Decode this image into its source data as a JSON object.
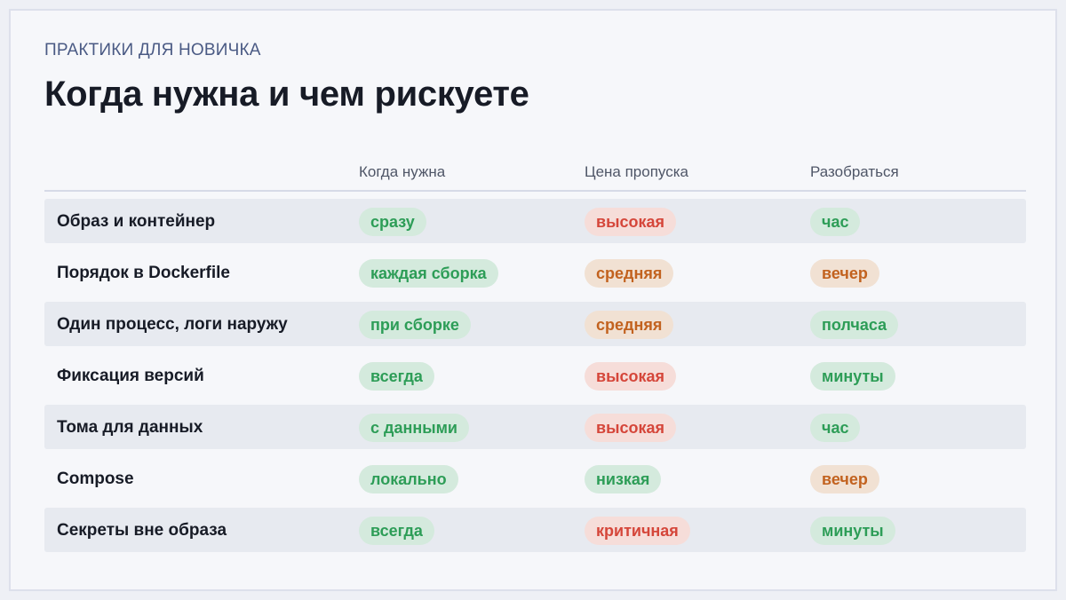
{
  "eyebrow": "ПРАКТИКИ ДЛЯ НОВИЧКА",
  "title": "Когда нужна и чем рискуете",
  "columns": [
    "Когда нужна",
    "Цена пропуска",
    "Разобраться"
  ],
  "colors": {
    "green": "#2d9d57",
    "red": "#d5463a",
    "orange": "#c2621f"
  },
  "rows": [
    {
      "label": "Образ и контейнер",
      "when": "сразу",
      "when_color": "green",
      "cost": "высокая",
      "cost_color": "red",
      "learn": "час",
      "learn_color": "green"
    },
    {
      "label": "Порядок в Dockerfile",
      "when": "каждая сборка",
      "when_color": "green",
      "cost": "средняя",
      "cost_color": "orange",
      "learn": "вечер",
      "learn_color": "orange"
    },
    {
      "label": "Один процесс, логи наружу",
      "when": "при сборке",
      "when_color": "green",
      "cost": "средняя",
      "cost_color": "orange",
      "learn": "полчаса",
      "learn_color": "green"
    },
    {
      "label": "Фиксация версий",
      "when": "всегда",
      "when_color": "green",
      "cost": "высокая",
      "cost_color": "red",
      "learn": "минуты",
      "learn_color": "green"
    },
    {
      "label": "Тома для данных",
      "when": "с данными",
      "when_color": "green",
      "cost": "высокая",
      "cost_color": "red",
      "learn": "час",
      "learn_color": "green"
    },
    {
      "label": "Compose",
      "when": "локально",
      "when_color": "green",
      "cost": "низкая",
      "cost_color": "green",
      "learn": "вечер",
      "learn_color": "orange"
    },
    {
      "label": "Секреты вне образа",
      "when": "всегда",
      "when_color": "green",
      "cost": "критичная",
      "cost_color": "red",
      "learn": "минуты",
      "learn_color": "green"
    }
  ]
}
